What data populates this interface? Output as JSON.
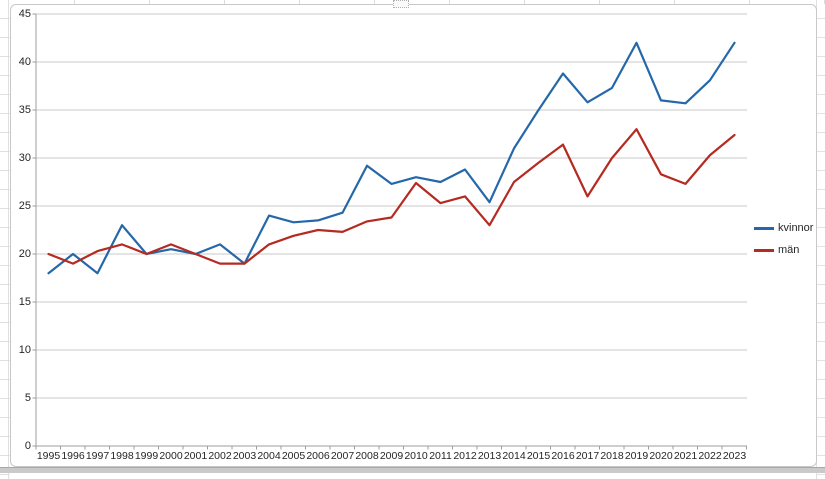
{
  "chart_data": {
    "type": "line",
    "title": "",
    "xlabel": "",
    "ylabel": "",
    "categories": [
      "1995",
      "1996",
      "1997",
      "1998",
      "1999",
      "2000",
      "2001",
      "2002",
      "2003",
      "2004",
      "2005",
      "2006",
      "2007",
      "2008",
      "2009",
      "2010",
      "2011",
      "2012",
      "2013",
      "2014",
      "2015",
      "2016",
      "2017",
      "2018",
      "2019",
      "2020",
      "2021",
      "2022",
      "2023"
    ],
    "series": [
      {
        "name": "kvinnor",
        "color": "#2568A9",
        "values": [
          18,
          20,
          18,
          23,
          20,
          20.5,
          20,
          21,
          19,
          24,
          23.3,
          23.5,
          24.3,
          29.2,
          27.3,
          28,
          27.5,
          28.8,
          25.4,
          31,
          35,
          38.8,
          35.8,
          37.3,
          42,
          36,
          35.7,
          38.1,
          42
        ]
      },
      {
        "name": "män",
        "color": "#B52A21",
        "values": [
          20,
          19,
          20.3,
          21,
          20,
          21,
          20,
          19,
          19,
          21,
          21.9,
          22.5,
          22.3,
          23.4,
          23.8,
          27.4,
          25.3,
          26,
          23,
          27.5,
          29.5,
          31.4,
          26,
          30,
          33,
          28.3,
          27.3,
          30.3,
          32.4
        ]
      }
    ],
    "ylim": [
      0,
      45
    ],
    "yticks": [
      0,
      5,
      10,
      15,
      20,
      25,
      30,
      35,
      40,
      45
    ],
    "grid": true,
    "legend_position": "right"
  },
  "colors": {
    "gridline": "#c8c8c8",
    "axis": "#9e9e9e",
    "tick_label": "#262626",
    "chart_border": "#c8c8c8"
  }
}
